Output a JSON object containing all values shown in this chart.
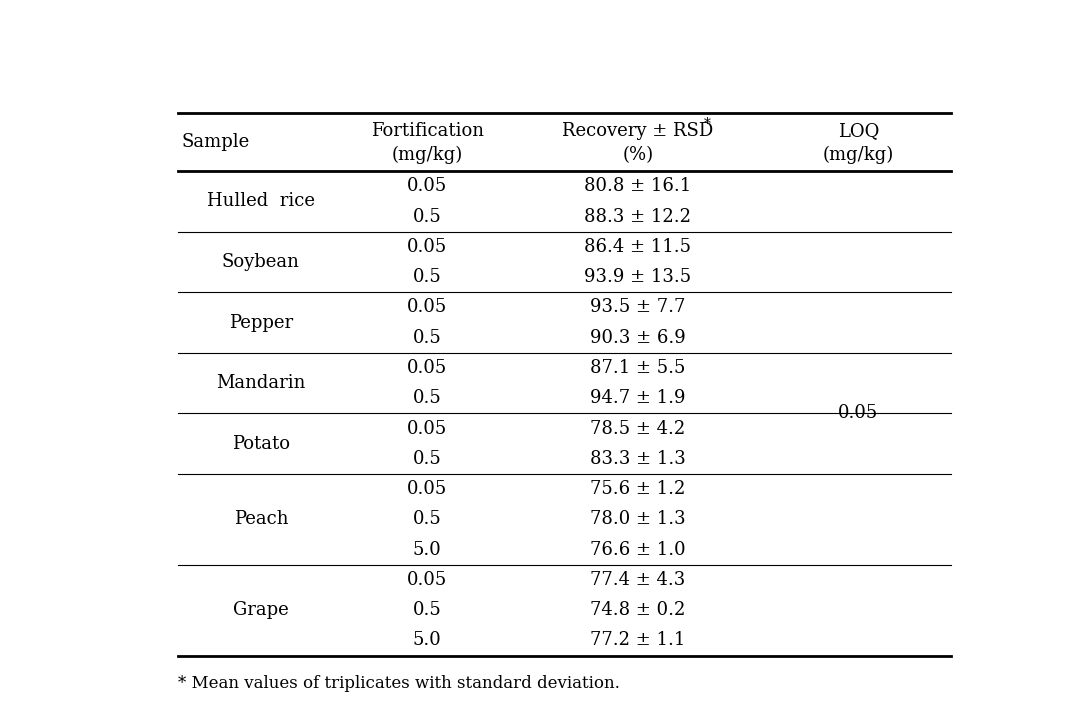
{
  "header_line1": [
    "Sample",
    "Fortification",
    "Recovery ± RSD*",
    "LOQ"
  ],
  "header_line2": [
    "",
    "(mg/kg)",
    "(%)",
    "(mg/kg)"
  ],
  "rows": [
    [
      "Hulled  rice",
      "0.05",
      "80.8 ± 16.1",
      ""
    ],
    [
      "",
      "0.5",
      "88.3 ± 12.2",
      ""
    ],
    [
      "Soybean",
      "0.05",
      "86.4 ± 11.5",
      ""
    ],
    [
      "",
      "0.5",
      "93.9 ± 13.5",
      ""
    ],
    [
      "Pepper",
      "0.05",
      "93.5 ± 7.7",
      ""
    ],
    [
      "",
      "0.5",
      "90.3 ± 6.9",
      ""
    ],
    [
      "Mandarin",
      "0.05",
      "87.1 ± 5.5",
      ""
    ],
    [
      "",
      "0.5",
      "94.7 ± 1.9",
      ""
    ],
    [
      "Potato",
      "0.05",
      "78.5 ± 4.2",
      ""
    ],
    [
      "",
      "0.5",
      "83.3 ± 1.3",
      ""
    ],
    [
      "Peach",
      "0.05",
      "75.6 ± 1.2",
      ""
    ],
    [
      "",
      "0.5",
      "78.0 ± 1.3",
      ""
    ],
    [
      "",
      "5.0",
      "76.6 ± 1.0",
      ""
    ],
    [
      "Grape",
      "0.05",
      "77.4 ± 4.3",
      ""
    ],
    [
      "",
      "0.5",
      "74.8 ± 0.2",
      ""
    ],
    [
      "",
      "5.0",
      "77.2 ± 1.1",
      ""
    ]
  ],
  "group_separators_after": [
    1,
    3,
    5,
    7,
    9,
    12
  ],
  "sample_groups": [
    {
      "label": "Hulled  rice",
      "start": 0,
      "end": 1
    },
    {
      "label": "Soybean",
      "start": 2,
      "end": 3
    },
    {
      "label": "Pepper",
      "start": 4,
      "end": 5
    },
    {
      "label": "Mandarin",
      "start": 6,
      "end": 7
    },
    {
      "label": "Potato",
      "start": 8,
      "end": 9
    },
    {
      "label": "Peach",
      "start": 10,
      "end": 12
    },
    {
      "label": "Grape",
      "start": 13,
      "end": 15
    }
  ],
  "loq_value": "0.05",
  "loq_row": 7.5,
  "footnote": "* Mean values of triplicates with standard deviation.",
  "font_size": 13,
  "header_font_size": 13,
  "footnote_font_size": 12,
  "bg_color": "white",
  "text_color": "black",
  "line_color": "black",
  "thick_lw": 2.0,
  "thin_lw": 0.8
}
